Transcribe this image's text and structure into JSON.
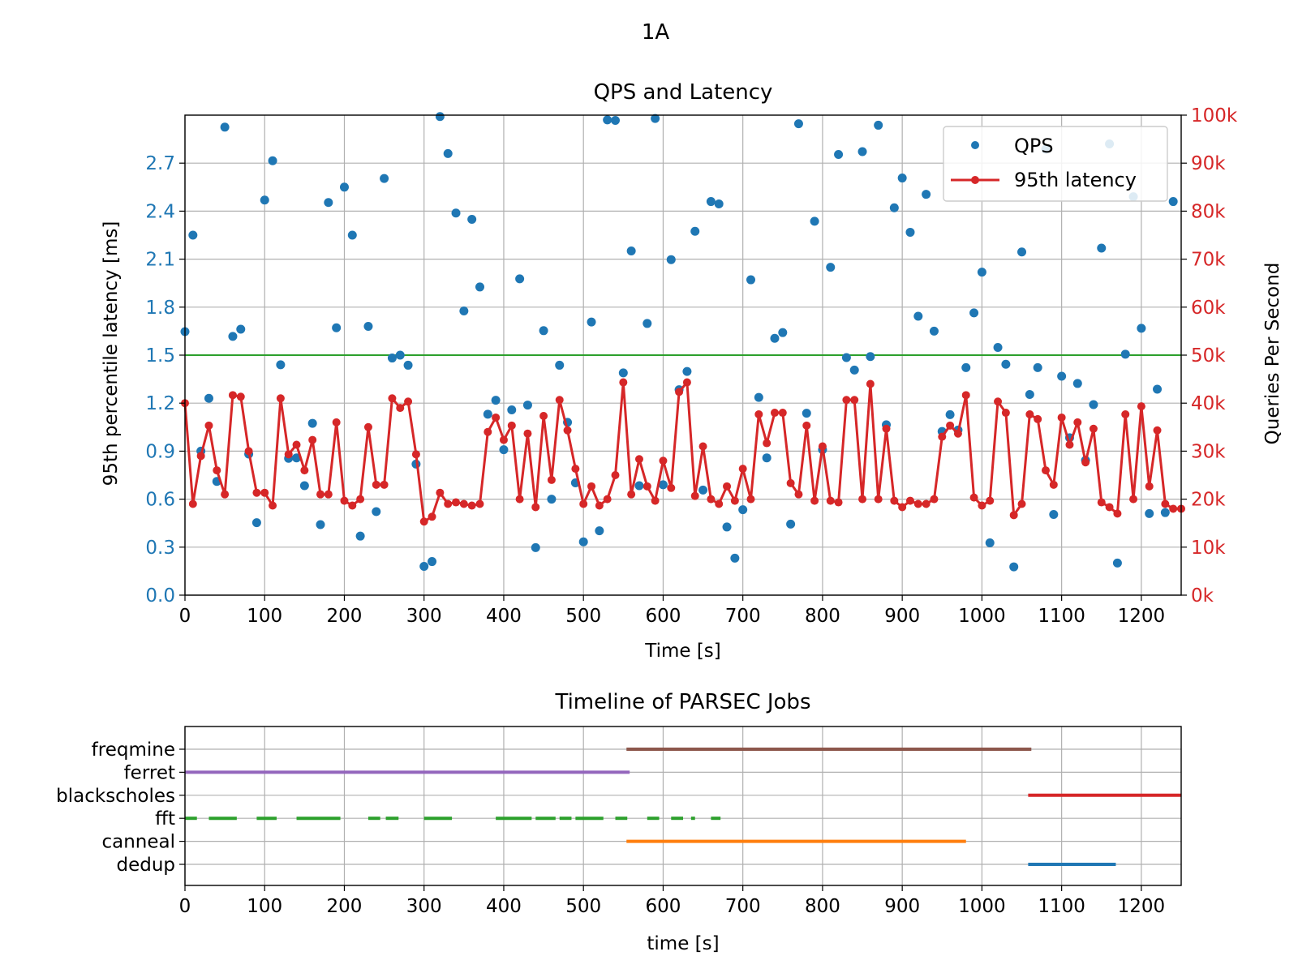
{
  "figure_title": "1A",
  "chart_data": [
    {
      "type": "scatter+line",
      "title": "QPS and Latency",
      "xlabel": "Time [s]",
      "ylabel_left": "95th percentile latency [ms]",
      "ylabel_right": "Queries Per Second",
      "xlim": [
        0,
        1250
      ],
      "ylim_left": [
        0,
        3.0
      ],
      "ylim_right": [
        0,
        100000
      ],
      "x_ticks": [
        "0",
        "100",
        "200",
        "300",
        "400",
        "500",
        "600",
        "700",
        "800",
        "900",
        "1000",
        "1100",
        "1200"
      ],
      "y_left_ticks": [
        "0.0",
        "0.3",
        "0.6",
        "0.9",
        "1.2",
        "1.5",
        "1.8",
        "2.1",
        "2.4",
        "2.7"
      ],
      "y_right_ticks": [
        "0k",
        "10k",
        "20k",
        "30k",
        "40k",
        "50k",
        "60k",
        "70k",
        "80k",
        "90k",
        "100k"
      ],
      "grid": true,
      "legend_position": "top-right",
      "colors": {
        "qps": "#1f77b4",
        "latency": "#d62728",
        "slo": "#2ca02c",
        "left_axis": "#1f77b4",
        "right_axis": "#d62728"
      },
      "slo_line": 1.5,
      "series": [
        {
          "name": "QPS",
          "axis": "right",
          "style": "markers",
          "x": [
            0,
            10,
            20,
            30,
            40,
            50,
            60,
            70,
            80,
            90,
            100,
            110,
            120,
            130,
            140,
            150,
            160,
            170,
            180,
            190,
            200,
            210,
            220,
            230,
            240,
            250,
            260,
            270,
            280,
            290,
            300,
            310,
            320,
            330,
            340,
            350,
            360,
            370,
            380,
            390,
            400,
            410,
            420,
            430,
            440,
            450,
            460,
            470,
            480,
            490,
            500,
            510,
            520,
            530,
            540,
            550,
            560,
            570,
            580,
            590,
            600,
            610,
            620,
            630,
            640,
            650,
            660,
            670,
            680,
            690,
            700,
            710,
            720,
            730,
            740,
            750,
            760,
            770,
            780,
            790,
            800,
            810,
            820,
            830,
            840,
            850,
            860,
            870,
            880,
            890,
            900,
            910,
            920,
            930,
            940,
            950,
            960,
            970,
            980,
            990,
            1000,
            1010,
            1020,
            1030,
            1040,
            1050,
            1060,
            1070,
            1080,
            1090,
            1100,
            1110,
            1120,
            1130,
            1140,
            1150,
            1160,
            1170,
            1180,
            1190,
            1200,
            1210,
            1220,
            1230,
            1240
          ],
          "values": [
            54900,
            75000,
            30000,
            41000,
            23700,
            97500,
            53900,
            55400,
            29400,
            15100,
            82300,
            90500,
            48000,
            28500,
            28600,
            22800,
            35800,
            14700,
            81800,
            55700,
            85000,
            75000,
            12300,
            56000,
            17400,
            86800,
            49400,
            50000,
            47900,
            27300,
            6000,
            7000,
            99700,
            92000,
            79600,
            59200,
            78300,
            64200,
            37700,
            40600,
            30300,
            38600,
            65900,
            39600,
            9900,
            55100,
            20000,
            47900,
            36000,
            23400,
            11100,
            56900,
            13400,
            99000,
            98900,
            46300,
            71700,
            22800,
            56600,
            99300,
            23000,
            69900,
            42800,
            46600,
            75800,
            21900,
            82000,
            81500,
            14200,
            7700,
            17800,
            65700,
            41200,
            28600,
            53500,
            54700,
            14800,
            98200,
            37900,
            77900,
            30300,
            68300,
            91800,
            49500,
            46900,
            92400,
            49700,
            97900,
            35500,
            80700,
            86900,
            75600,
            58100,
            83500,
            55000,
            34100,
            37600,
            34400,
            47400,
            58800,
            67300,
            10900,
            51600,
            48100,
            5900,
            71500,
            41800,
            47400,
            92900,
            16800,
            45600,
            32800,
            44100,
            28100,
            39700,
            72300,
            94000,
            6700,
            50200,
            83000,
            55600,
            17000,
            42900,
            17200,
            82000
          ]
        },
        {
          "name": "95th latency",
          "axis": "left",
          "style": "line+markers",
          "x": [
            0,
            10,
            20,
            30,
            40,
            50,
            60,
            70,
            80,
            90,
            100,
            110,
            120,
            130,
            140,
            150,
            160,
            170,
            180,
            190,
            200,
            210,
            220,
            230,
            240,
            250,
            260,
            270,
            280,
            290,
            300,
            310,
            320,
            330,
            340,
            350,
            360,
            370,
            380,
            390,
            400,
            410,
            420,
            430,
            440,
            450,
            460,
            470,
            480,
            490,
            500,
            510,
            520,
            530,
            540,
            550,
            560,
            570,
            580,
            590,
            600,
            610,
            620,
            630,
            640,
            650,
            660,
            670,
            680,
            690,
            700,
            710,
            720,
            730,
            740,
            750,
            760,
            770,
            780,
            790,
            800,
            810,
            820,
            830,
            840,
            850,
            860,
            870,
            880,
            890,
            900,
            910,
            920,
            930,
            940,
            950,
            960,
            970,
            980,
            990,
            1000,
            1010,
            1020,
            1030,
            1040,
            1050,
            1060,
            1070,
            1080,
            1090,
            1100,
            1110,
            1120,
            1130,
            1140,
            1150,
            1160,
            1170,
            1180,
            1190,
            1200,
            1210,
            1220,
            1230,
            1240,
            1250
          ],
          "values": [
            1.2,
            0.57,
            0.87,
            1.06,
            0.78,
            0.63,
            1.25,
            1.24,
            0.9,
            0.64,
            0.64,
            0.56,
            1.23,
            0.88,
            0.94,
            0.78,
            0.97,
            0.63,
            0.63,
            1.08,
            0.59,
            0.56,
            0.6,
            1.05,
            0.69,
            0.69,
            1.23,
            1.17,
            1.21,
            0.88,
            0.46,
            0.49,
            0.64,
            0.57,
            0.58,
            0.57,
            0.56,
            0.57,
            1.02,
            1.11,
            0.97,
            1.06,
            0.6,
            1.01,
            0.55,
            1.12,
            0.72,
            1.22,
            1.03,
            0.79,
            0.57,
            0.68,
            0.56,
            0.6,
            0.75,
            1.33,
            0.63,
            0.85,
            0.68,
            0.59,
            0.84,
            0.67,
            1.27,
            1.33,
            0.62,
            0.93,
            0.6,
            0.57,
            0.68,
            0.59,
            0.79,
            0.6,
            1.13,
            0.95,
            1.14,
            1.14,
            0.7,
            0.63,
            1.06,
            0.59,
            0.93,
            0.59,
            0.58,
            1.22,
            1.22,
            0.6,
            1.32,
            0.6,
            1.04,
            0.59,
            0.55,
            0.59,
            0.57,
            0.57,
            0.6,
            0.99,
            1.06,
            1.01,
            1.25,
            0.61,
            0.56,
            0.59,
            1.21,
            1.14,
            0.5,
            0.57,
            1.13,
            1.1,
            0.78,
            0.69,
            1.11,
            0.94,
            1.08,
            0.83,
            1.04,
            0.58,
            0.55,
            0.51,
            1.13,
            0.6,
            1.18,
            0.68,
            1.03,
            0.57,
            0.54,
            0.54
          ]
        }
      ]
    },
    {
      "type": "timeline",
      "title": "Timeline of PARSEC Jobs",
      "xlabel": "time [s]",
      "xlim": [
        0,
        1250
      ],
      "x_ticks": [
        "0",
        "100",
        "200",
        "300",
        "400",
        "500",
        "600",
        "700",
        "800",
        "900",
        "1000",
        "1100",
        "1200"
      ],
      "grid": true,
      "jobs": [
        {
          "name": "freqmine",
          "color": "#8c564b",
          "segments": [
            [
              554,
              1062
            ]
          ]
        },
        {
          "name": "ferret",
          "color": "#9467bd",
          "segments": [
            [
              0,
              558
            ]
          ]
        },
        {
          "name": "blackscholes",
          "color": "#d62728",
          "segments": [
            [
              1058,
              1250
            ]
          ]
        },
        {
          "name": "fft",
          "color": "#2ca02c",
          "segments": [
            [
              0,
              15
            ],
            [
              30,
              65
            ],
            [
              90,
              115
            ],
            [
              140,
              195
            ],
            [
              230,
              245
            ],
            [
              252,
              268
            ],
            [
              300,
              335
            ],
            [
              390,
              435
            ],
            [
              440,
              465
            ],
            [
              470,
              485
            ],
            [
              490,
              525
            ],
            [
              540,
              555
            ],
            [
              580,
              595
            ],
            [
              610,
              625
            ],
            [
              635,
              640
            ],
            [
              660,
              672
            ]
          ]
        },
        {
          "name": "canneal",
          "color": "#ff7f0e",
          "segments": [
            [
              554,
              980
            ]
          ]
        },
        {
          "name": "dedup",
          "color": "#1f77b4",
          "segments": [
            [
              1058,
              1168
            ]
          ]
        }
      ]
    }
  ]
}
